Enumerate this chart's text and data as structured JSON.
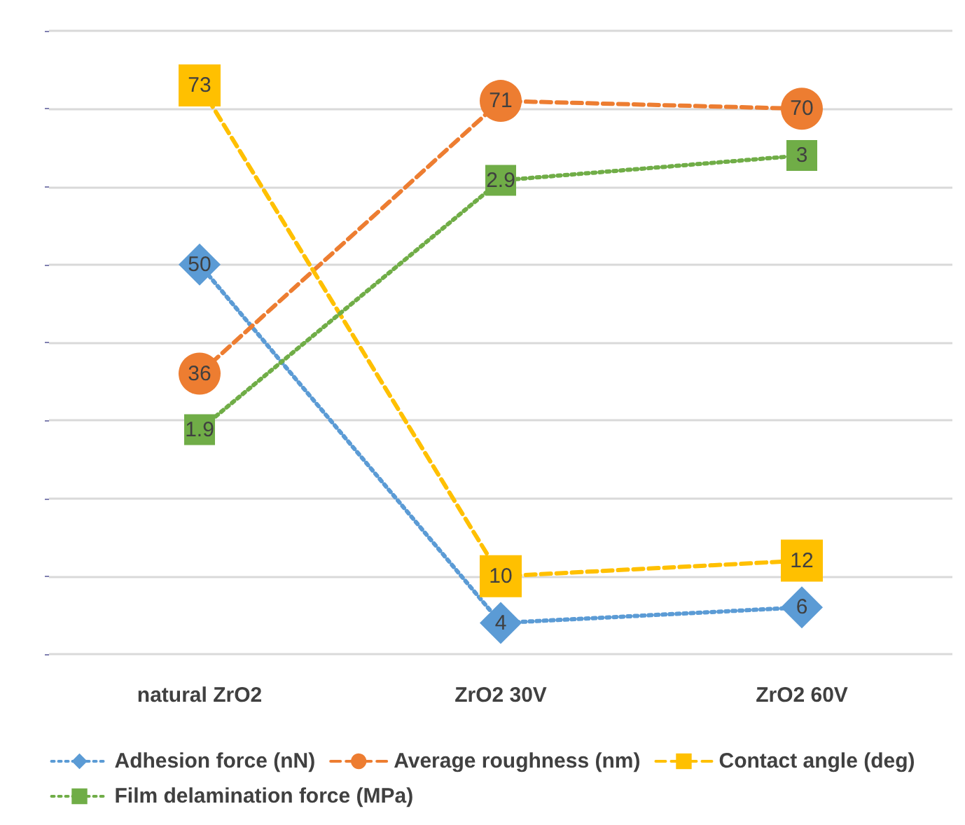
{
  "chart_data": {
    "type": "line",
    "categories": [
      "natural ZrO2",
      "ZrO2 30V",
      "ZrO2 60V"
    ],
    "series": [
      {
        "name": "Adhesion force (nN)",
        "color": "#5b9bd5",
        "values": [
          50,
          4,
          6
        ],
        "marker": "diamond",
        "line_style": "dotted"
      },
      {
        "name": "Average roughness (nm)",
        "color": "#ed7d31",
        "values": [
          36,
          71,
          70
        ],
        "marker": "circle",
        "line_style": "dashed"
      },
      {
        "name": "Contact angle (deg)",
        "color": "#ffc000",
        "values": [
          73,
          10,
          12
        ],
        "marker": "square",
        "line_style": "dashed"
      },
      {
        "name": "Film delamination force (MPa)",
        "color": "#70ad47",
        "values": [
          1.9,
          2.9,
          3
        ],
        "marker": "square",
        "line_style": "dotted",
        "axis": "y2"
      }
    ],
    "ylim": [
      0,
      80
    ],
    "yticks": [
      0,
      10,
      20,
      30,
      40,
      50,
      60,
      70,
      80
    ],
    "y2lim": [
      1,
      3.5
    ],
    "grid": "y",
    "tick_labels": "x",
    "legend": "bottom",
    "data_labels": true
  }
}
